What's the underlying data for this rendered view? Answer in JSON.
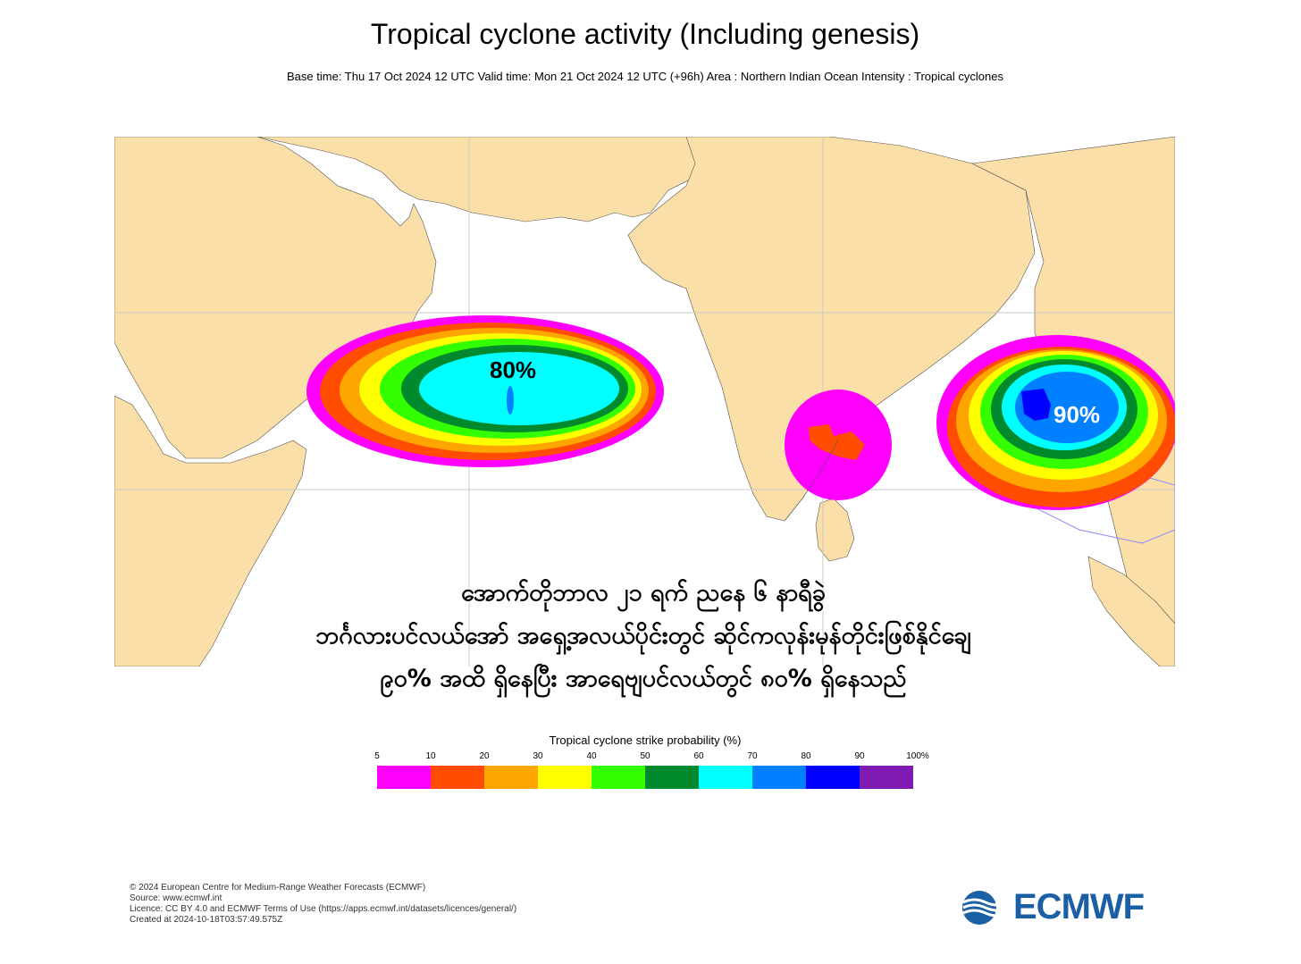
{
  "title": "Tropical cyclone activity (Including genesis)",
  "subtitle": "Base time: Thu 17 Oct 2024 12 UTC Valid time: Mon 21 Oct 2024 12 UTC (+96h) Area : Northern Indian Ocean Intensity : Tropical cyclones",
  "map": {
    "labels": {
      "arabian_sea": "80%",
      "bay_of_bengal": "90%"
    },
    "colors": {
      "land": "#fbdfa8",
      "ocean": "#ffffff"
    }
  },
  "caption": {
    "line1": "အောက်တိုဘာလ ၂၁ ရက် ညနေ ၆ နာရီခွဲ",
    "line2": "ဘင်္ဂလားပင်လယ်အော် အရှေ့အလယ်ပိုင်းတွင် ဆိုင်ကလုန်းမုန်တိုင်းဖြစ်နိုင်ချေ",
    "line3": "၉၀% အထိ ရှိနေပြီး အာရေဗျပင်လယ်တွင် ၈၀% ရှိနေသည်"
  },
  "legend": {
    "title": "Tropical cyclone strike probability (%)",
    "ticks": [
      "5",
      "10",
      "20",
      "30",
      "40",
      "50",
      "60",
      "70",
      "80",
      "90",
      "100%"
    ],
    "colors": [
      "#ff00ff",
      "#ff4c00",
      "#ffa500",
      "#ffff00",
      "#33ff00",
      "#00892d",
      "#00ffff",
      "#0080ff",
      "#0000ff",
      "#7f1ab2"
    ]
  },
  "footer": {
    "line1": "© 2024 European Centre for Medium-Range Weather Forecasts (ECMWF)",
    "line2": "Source: www.ecmwf.int",
    "line3": "Licence: CC BY 4.0 and ECMWF Terms of Use (https://apps.ecmwf.int/datasets/licences/general/)",
    "line4": "Created at 2024-10-18T03:57:49.575Z"
  },
  "logo": {
    "text": "ECMWF",
    "color": "#1b5fa5"
  }
}
